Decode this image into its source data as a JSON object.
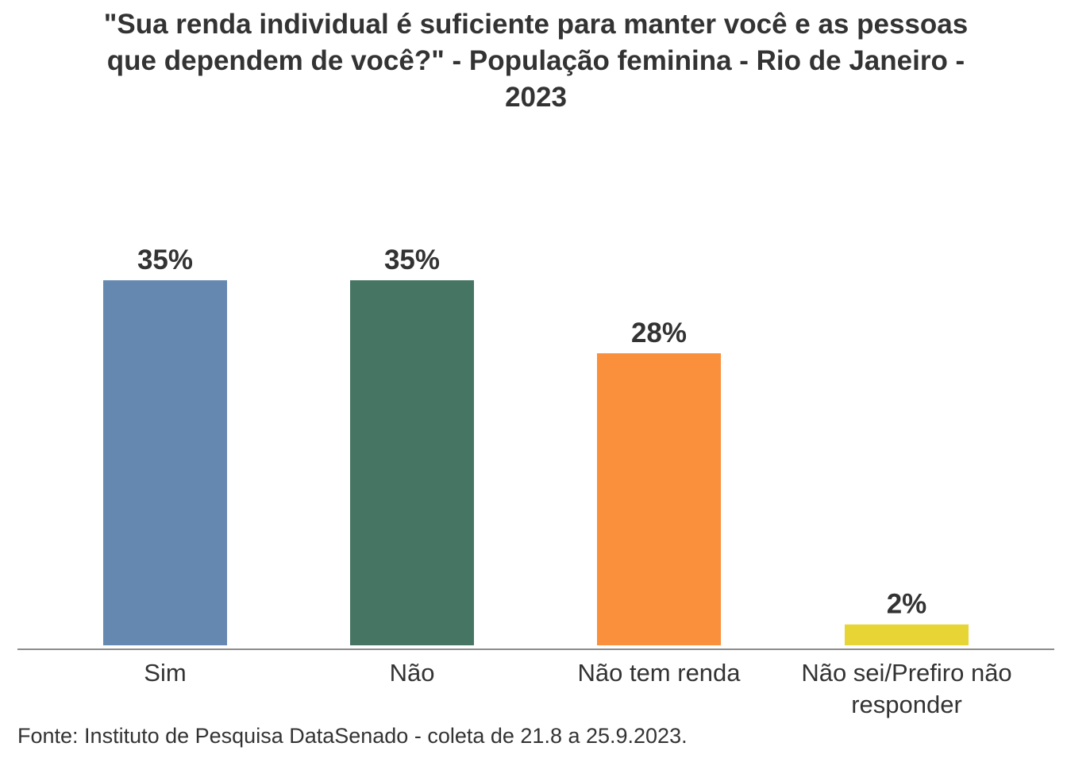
{
  "chart_data": {
    "type": "bar",
    "title": "\"Sua renda individual é suficiente para manter você e as pessoas que dependem de você?\" - População feminina - Rio de Janeiro - 2023",
    "categories": [
      "Sim",
      "Não",
      "Não tem renda",
      "Não sei/Prefiro não responder"
    ],
    "category_lines": [
      [
        "Sim"
      ],
      [
        "Não"
      ],
      [
        "Não tem renda"
      ],
      [
        "Não sei/Prefiro não",
        "responder"
      ]
    ],
    "values": [
      35,
      35,
      28,
      2
    ],
    "data_labels": [
      "35%",
      "35%",
      "28%",
      "2%"
    ],
    "colors": [
      "#6588b0",
      "#467563",
      "#fa8f3c",
      "#e6d535"
    ],
    "xlabel": "",
    "ylabel": "",
    "ylim": [
      0,
      40
    ],
    "grid": false,
    "legend": "none"
  },
  "source": "Fonte: Instituto de Pesquisa DataSenado - coleta de 21.8 a 25.9.2023."
}
